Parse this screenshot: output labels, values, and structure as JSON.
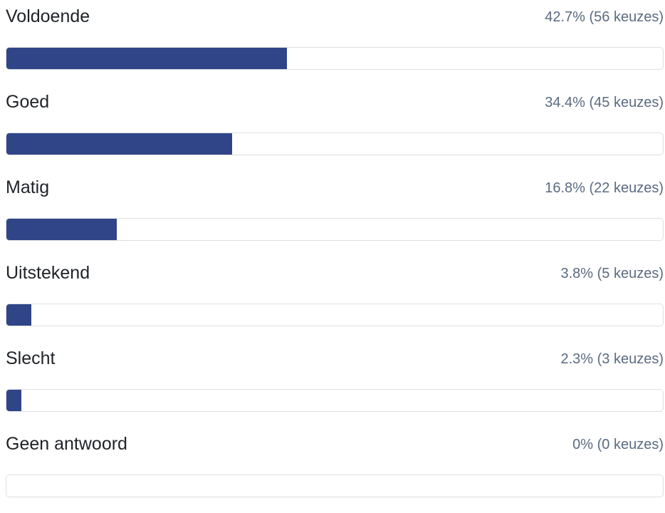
{
  "colors": {
    "bar_fill": "#2f4587",
    "track_border": "#dcdfe4",
    "label_text": "#1f2328",
    "stats_text": "#5a6b80"
  },
  "options": [
    {
      "label": "Voldoende",
      "stats": "42.7% (56 keuzes)",
      "percent": 42.7
    },
    {
      "label": "Goed",
      "stats": "34.4% (45 keuzes)",
      "percent": 34.4
    },
    {
      "label": "Matig",
      "stats": "16.8% (22 keuzes)",
      "percent": 16.8
    },
    {
      "label": "Uitstekend",
      "stats": "3.8% (5 keuzes)",
      "percent": 3.8
    },
    {
      "label": "Slecht",
      "stats": "2.3% (3 keuzes)",
      "percent": 2.3
    },
    {
      "label": "Geen antwoord",
      "stats": "0% (0 keuzes)",
      "percent": 0
    }
  ]
}
